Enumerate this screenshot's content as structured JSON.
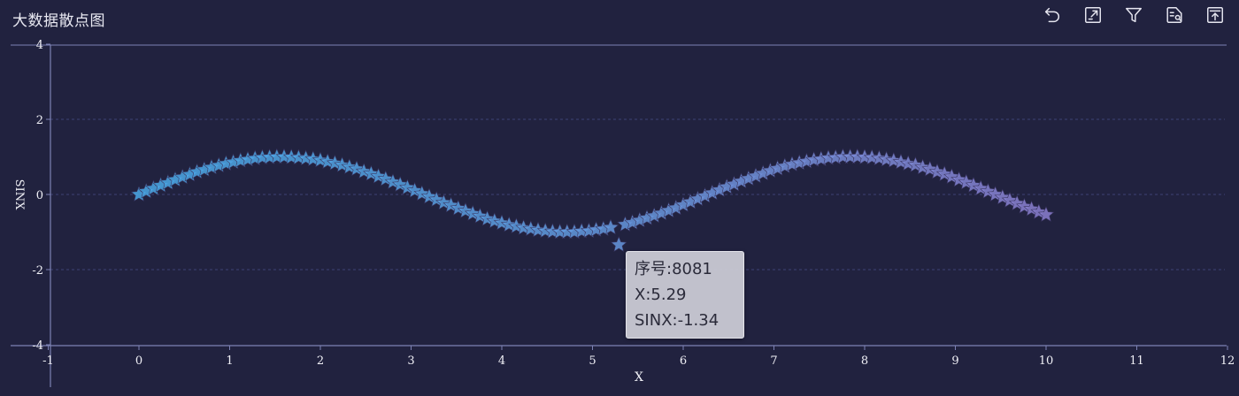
{
  "header": {
    "title": "大数据散点图",
    "tools": [
      {
        "name": "undo-icon"
      },
      {
        "name": "expand-icon"
      },
      {
        "name": "filter-icon"
      },
      {
        "name": "data-view-icon"
      },
      {
        "name": "export-icon"
      }
    ]
  },
  "tooltip": {
    "line1_label": "序号",
    "line1_value": "8081",
    "line2_label": "X",
    "line2_value": "5.29",
    "line3_label": "SINX",
    "line3_value": "-1.34",
    "text1": "序号:8081",
    "text2": "X:5.29",
    "text3": "SINX:-1.34"
  },
  "colors": {
    "background": "#21223f",
    "axis": "#7d82b4",
    "grid": "#3d4175",
    "point_start": "#4aa8e6",
    "point_end": "#8b7fd0"
  },
  "chart_data": {
    "type": "scatter",
    "title": "",
    "xlabel": "X",
    "ylabel": "SINX",
    "xlim": [
      -1,
      12
    ],
    "ylim": [
      -4,
      4
    ],
    "x_ticks": [
      "-1",
      "0",
      "1",
      "2",
      "3",
      "4",
      "5",
      "6",
      "7",
      "8",
      "9",
      "10",
      "11",
      "12"
    ],
    "y_ticks": [
      "4",
      "2",
      "0",
      "-2",
      "-4"
    ],
    "grid": "horizontal-dashed",
    "symbol": "star",
    "series": [
      {
        "points": [
          [
            0.0,
            0.0
          ],
          [
            0.08,
            0.08
          ],
          [
            0.16,
            0.16
          ],
          [
            0.24,
            0.24
          ],
          [
            0.32,
            0.31
          ],
          [
            0.4,
            0.39
          ],
          [
            0.48,
            0.46
          ],
          [
            0.56,
            0.53
          ],
          [
            0.64,
            0.6
          ],
          [
            0.72,
            0.66
          ],
          [
            0.8,
            0.72
          ],
          [
            0.88,
            0.77
          ],
          [
            0.96,
            0.82
          ],
          [
            1.04,
            0.86
          ],
          [
            1.12,
            0.9
          ],
          [
            1.2,
            0.93
          ],
          [
            1.28,
            0.96
          ],
          [
            1.36,
            0.98
          ],
          [
            1.44,
            0.99
          ],
          [
            1.52,
            1.0
          ],
          [
            1.6,
            1.0
          ],
          [
            1.68,
            0.99
          ],
          [
            1.76,
            0.98
          ],
          [
            1.84,
            0.96
          ],
          [
            1.92,
            0.94
          ],
          [
            2.0,
            0.91
          ],
          [
            2.08,
            0.87
          ],
          [
            2.16,
            0.83
          ],
          [
            2.24,
            0.78
          ],
          [
            2.32,
            0.73
          ],
          [
            2.4,
            0.68
          ],
          [
            2.48,
            0.61
          ],
          [
            2.56,
            0.55
          ],
          [
            2.64,
            0.48
          ],
          [
            2.72,
            0.41
          ],
          [
            2.8,
            0.33
          ],
          [
            2.88,
            0.26
          ],
          [
            2.96,
            0.18
          ],
          [
            3.04,
            0.1
          ],
          [
            3.12,
            0.02
          ],
          [
            3.2,
            -0.06
          ],
          [
            3.28,
            -0.14
          ],
          [
            3.36,
            -0.22
          ],
          [
            3.44,
            -0.29
          ],
          [
            3.52,
            -0.37
          ],
          [
            3.6,
            -0.44
          ],
          [
            3.68,
            -0.51
          ],
          [
            3.76,
            -0.58
          ],
          [
            3.84,
            -0.65
          ],
          [
            3.92,
            -0.71
          ],
          [
            4.0,
            -0.76
          ],
          [
            4.08,
            -0.81
          ],
          [
            4.16,
            -0.85
          ],
          [
            4.24,
            -0.89
          ],
          [
            4.32,
            -0.92
          ],
          [
            4.4,
            -0.95
          ],
          [
            4.48,
            -0.97
          ],
          [
            4.56,
            -0.99
          ],
          [
            4.64,
            -1.0
          ],
          [
            4.72,
            -1.0
          ],
          [
            4.8,
            -1.0
          ],
          [
            4.88,
            -0.98
          ],
          [
            4.96,
            -0.97
          ],
          [
            5.04,
            -0.94
          ],
          [
            5.12,
            -0.92
          ],
          [
            5.2,
            -0.88
          ],
          [
            5.29,
            -1.34
          ],
          [
            5.36,
            -0.8
          ],
          [
            5.44,
            -0.75
          ],
          [
            5.52,
            -0.69
          ],
          [
            5.6,
            -0.63
          ],
          [
            5.68,
            -0.57
          ],
          [
            5.76,
            -0.5
          ],
          [
            5.84,
            -0.43
          ],
          [
            5.92,
            -0.36
          ],
          [
            6.0,
            -0.28
          ],
          [
            6.08,
            -0.2
          ],
          [
            6.16,
            -0.12
          ],
          [
            6.24,
            -0.04
          ],
          [
            6.32,
            0.04
          ],
          [
            6.4,
            0.12
          ],
          [
            6.48,
            0.2
          ],
          [
            6.56,
            0.27
          ],
          [
            6.64,
            0.35
          ],
          [
            6.72,
            0.42
          ],
          [
            6.8,
            0.49
          ],
          [
            6.88,
            0.56
          ],
          [
            6.96,
            0.63
          ],
          [
            7.04,
            0.69
          ],
          [
            7.12,
            0.75
          ],
          [
            7.2,
            0.8
          ],
          [
            7.28,
            0.84
          ],
          [
            7.36,
            0.88
          ],
          [
            7.44,
            0.92
          ],
          [
            7.52,
            0.94
          ],
          [
            7.6,
            0.97
          ],
          [
            7.68,
            0.98
          ],
          [
            7.76,
            1.0
          ],
          [
            7.84,
            1.0
          ],
          [
            7.92,
            1.0
          ],
          [
            8.0,
            0.99
          ],
          [
            8.08,
            0.98
          ],
          [
            8.16,
            0.96
          ],
          [
            8.24,
            0.93
          ],
          [
            8.32,
            0.9
          ],
          [
            8.4,
            0.86
          ],
          [
            8.48,
            0.82
          ],
          [
            8.56,
            0.78
          ],
          [
            8.64,
            0.72
          ],
          [
            8.72,
            0.67
          ],
          [
            8.8,
            0.6
          ],
          [
            8.88,
            0.54
          ],
          [
            8.96,
            0.47
          ],
          [
            9.04,
            0.39
          ],
          [
            9.12,
            0.32
          ],
          [
            9.2,
            0.24
          ],
          [
            9.28,
            0.16
          ],
          [
            9.36,
            0.08
          ],
          [
            9.44,
            0.0
          ],
          [
            9.52,
            -0.08
          ],
          [
            9.6,
            -0.16
          ],
          [
            9.68,
            -0.24
          ],
          [
            9.76,
            -0.32
          ],
          [
            9.84,
            -0.39
          ],
          [
            9.92,
            -0.47
          ],
          [
            10.0,
            -0.54
          ]
        ]
      }
    ]
  }
}
